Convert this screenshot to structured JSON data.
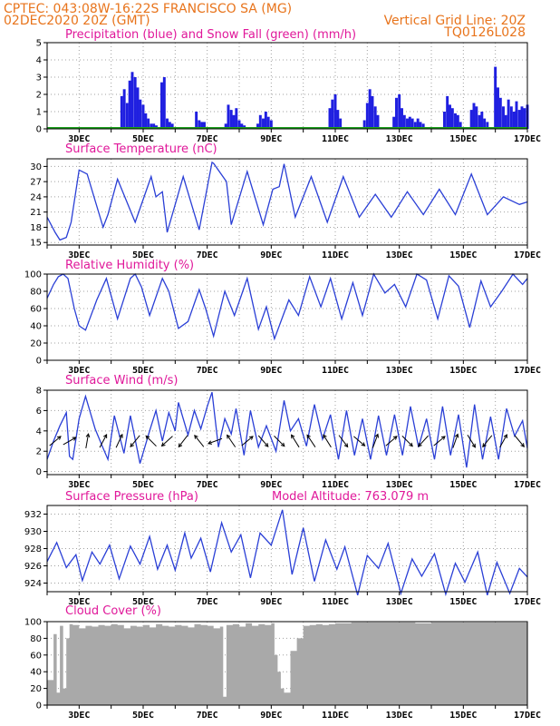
{
  "header": {
    "line1": "CPTEC:  043:08W-16:22S  FRANCISCO SA (MG)",
    "line2": "02DEC2020 20Z (GMT)",
    "grid_note": "Vertical Grid Line: 20Z",
    "model_id": "TQ0126L028"
  },
  "colors": {
    "precip": "#1f1fe0",
    "snow": "#1aa01a",
    "line": "#2a3fd6",
    "cloud": "#a9a9a9",
    "title": "#e0189a",
    "header": "#e8741c",
    "grid": "#a0a0a0"
  },
  "x_axis": {
    "start_day": 2,
    "end_day": 17,
    "tick_labels": [
      "3DEC",
      "5DEC",
      "7DEC",
      "9DEC",
      "11DEC",
      "13DEC",
      "15DEC",
      "17DEC"
    ]
  },
  "chart_data": [
    {
      "type": "bar",
      "title": "Precipitation (blue) and Snow Fall (green) (mm/h)",
      "ylim": [
        0,
        5
      ],
      "yticks": [
        0,
        1,
        2,
        3,
        4,
        5
      ],
      "x_unit": "day of December 2020 (fractional)",
      "series": [
        {
          "name": "Precipitation",
          "x": [
            4.33,
            4.41,
            4.5,
            4.58,
            4.66,
            4.75,
            4.83,
            4.91,
            5.0,
            5.08,
            5.16,
            5.25,
            5.33,
            5.41,
            5.58,
            5.66,
            5.75,
            5.83,
            5.91,
            6.66,
            6.75,
            6.83,
            6.91,
            7.58,
            7.66,
            7.75,
            7.83,
            7.91,
            8.0,
            8.08,
            8.16,
            8.58,
            8.66,
            8.75,
            8.83,
            8.91,
            9.0,
            10.83,
            10.91,
            11.0,
            11.08,
            11.16,
            11.91,
            12.0,
            12.08,
            12.16,
            12.25,
            12.33,
            12.83,
            12.91,
            13.0,
            13.08,
            13.16,
            13.25,
            13.33,
            13.41,
            13.5,
            13.58,
            13.66,
            13.75,
            14.41,
            14.5,
            14.58,
            14.66,
            14.75,
            14.83,
            14.91,
            15.25,
            15.33,
            15.41,
            15.5,
            15.58,
            15.66,
            15.75,
            16.0,
            16.08,
            16.16,
            16.25,
            16.33,
            16.41,
            16.5,
            16.58,
            16.66,
            16.75,
            16.83,
            16.91,
            17.0
          ],
          "values": [
            1.9,
            2.3,
            1.5,
            2.8,
            3.3,
            3.0,
            2.4,
            1.7,
            1.4,
            0.9,
            0.6,
            0.3,
            0.3,
            0.2,
            2.7,
            3.0,
            0.6,
            0.4,
            0.3,
            1.0,
            0.5,
            0.4,
            0.4,
            0.3,
            1.4,
            1.1,
            0.8,
            1.2,
            0.5,
            0.3,
            0.2,
            0.3,
            0.8,
            0.6,
            1.0,
            0.7,
            0.5,
            1.2,
            1.7,
            2.0,
            1.1,
            0.6,
            0.5,
            1.5,
            2.3,
            1.9,
            1.3,
            0.8,
            0.7,
            1.8,
            2.0,
            1.2,
            0.8,
            0.6,
            0.7,
            0.6,
            0.4,
            0.6,
            0.4,
            0.3,
            1.0,
            1.9,
            1.4,
            1.2,
            0.9,
            0.8,
            0.4,
            1.1,
            1.5,
            1.3,
            0.8,
            1.0,
            0.6,
            0.4,
            3.6,
            2.4,
            1.8,
            1.3,
            0.8,
            1.7,
            1.3,
            1.0,
            1.6,
            1.1,
            1.3,
            1.2,
            1.4
          ]
        },
        {
          "name": "Snow Fall",
          "x": [],
          "values": []
        }
      ]
    },
    {
      "type": "line",
      "title": "Surface Temperature (nC)",
      "ylim": [
        14.5,
        31.5
      ],
      "yticks": [
        15,
        18,
        21,
        24,
        27,
        30
      ],
      "x": [
        2.0,
        2.25,
        2.4,
        2.6,
        2.75,
        3.0,
        3.25,
        3.75,
        3.9,
        4.2,
        4.75,
        5.25,
        5.4,
        5.6,
        5.75,
        6.25,
        6.75,
        7.15,
        7.2,
        7.6,
        7.75,
        8.25,
        8.75,
        9.05,
        9.25,
        9.4,
        9.75,
        10.25,
        10.75,
        11.25,
        11.75,
        12.25,
        12.75,
        13.25,
        13.75,
        14.25,
        14.75,
        15.25,
        15.75,
        16.25,
        16.75,
        17.0
      ],
      "values": [
        20,
        17,
        15.5,
        16,
        19,
        29.3,
        28.5,
        18,
        20.5,
        27.5,
        19,
        28,
        24,
        25,
        17,
        28,
        17.5,
        30.8,
        30.6,
        27,
        18.5,
        29,
        18.5,
        25.5,
        26,
        30.5,
        20,
        28,
        19,
        28,
        20,
        24.5,
        20,
        25,
        20.5,
        25.5,
        20.5,
        28.5,
        20.5,
        24,
        22.5,
        23
      ]
    },
    {
      "type": "line",
      "title": "Relative Humidity (%)",
      "ylim": [
        0,
        100
      ],
      "yticks": [
        0,
        20,
        40,
        60,
        80,
        100
      ],
      "x": [
        2.0,
        2.2,
        2.35,
        2.5,
        2.65,
        2.85,
        3.0,
        3.2,
        3.55,
        3.85,
        4.2,
        4.6,
        4.75,
        4.95,
        5.2,
        5.6,
        5.8,
        6.1,
        6.4,
        6.75,
        6.95,
        7.2,
        7.55,
        7.85,
        8.25,
        8.6,
        8.85,
        9.1,
        9.55,
        9.85,
        10.2,
        10.55,
        10.85,
        11.2,
        11.55,
        11.85,
        12.2,
        12.55,
        12.85,
        13.2,
        13.55,
        13.85,
        14.2,
        14.55,
        14.85,
        15.2,
        15.55,
        15.85,
        16.2,
        16.55,
        16.85,
        17.0
      ],
      "values": [
        72,
        88,
        97,
        100,
        95,
        60,
        40,
        35,
        70,
        95,
        48,
        95,
        100,
        85,
        52,
        95,
        80,
        37,
        45,
        82,
        60,
        28,
        80,
        52,
        95,
        36,
        62,
        25,
        70,
        52,
        97,
        62,
        95,
        48,
        90,
        52,
        100,
        78,
        88,
        62,
        100,
        93,
        48,
        98,
        86,
        38,
        92,
        62,
        80,
        100,
        88,
        95
      ]
    },
    {
      "type": "line",
      "title": "Surface Wind (m/s)",
      "ylim": [
        -0.3,
        8
      ],
      "yticks": [
        0,
        2,
        4,
        6,
        8
      ],
      "x": [
        2.0,
        2.2,
        2.4,
        2.6,
        2.7,
        2.8,
        3.0,
        3.2,
        3.5,
        3.75,
        3.9,
        4.1,
        4.4,
        4.6,
        4.9,
        5.2,
        5.4,
        5.6,
        5.8,
        6.0,
        6.1,
        6.4,
        6.6,
        6.8,
        7.0,
        7.15,
        7.35,
        7.55,
        7.75,
        7.9,
        8.15,
        8.35,
        8.6,
        8.85,
        9.15,
        9.4,
        9.6,
        9.85,
        10.1,
        10.35,
        10.6,
        10.85,
        11.1,
        11.35,
        11.6,
        11.85,
        12.1,
        12.35,
        12.6,
        12.85,
        13.1,
        13.35,
        13.6,
        13.85,
        14.1,
        14.35,
        14.6,
        14.85,
        15.1,
        15.35,
        15.6,
        15.85,
        16.1,
        16.35,
        16.6,
        16.85,
        17.0
      ],
      "values": [
        1.2,
        3.0,
        4.5,
        5.8,
        1.5,
        1.2,
        5.2,
        7.4,
        4.2,
        2.3,
        1.2,
        5.5,
        1.8,
        5.5,
        0.8,
        4.0,
        6.0,
        3.0,
        5.8,
        4.0,
        6.8,
        3.6,
        6.0,
        4.2,
        6.4,
        7.8,
        2.4,
        5.2,
        3.7,
        6.2,
        1.6,
        6.0,
        2.4,
        4.5,
        2.0,
        7.0,
        4.0,
        5.2,
        2.5,
        6.6,
        3.2,
        5.6,
        1.2,
        6.0,
        1.6,
        5.2,
        1.2,
        5.5,
        1.6,
        5.6,
        1.6,
        6.4,
        2.4,
        5.2,
        1.2,
        6.4,
        1.6,
        5.6,
        0.4,
        6.6,
        1.2,
        5.4,
        1.2,
        6.2,
        3.5,
        5.0,
        2.3
      ],
      "arrows": {
        "x": [
          2.25,
          2.7,
          3.25,
          3.75,
          4.25,
          4.75,
          5.25,
          5.75,
          6.25,
          6.75,
          7.25,
          7.75,
          8.25,
          8.75,
          9.25,
          9.75,
          10.25,
          10.75,
          11.25,
          11.75,
          12.25,
          12.75,
          13.25,
          13.75,
          14.25,
          14.75,
          15.25,
          15.75,
          16.25,
          16.75
        ],
        "u": [
          0.6,
          0.7,
          0.4,
          0.8,
          0.7,
          -0.9,
          -1.0,
          -1.0,
          -1.0,
          -1.2,
          -1.1,
          -1.1,
          0.6,
          0.7,
          0.6,
          -1.0,
          -1.0,
          -1.0,
          0.6,
          0.7,
          0.6,
          0.7,
          0.6,
          -1.2,
          0.6,
          0.6,
          0.5,
          -1.2,
          0.5,
          0.5
        ],
        "v": [
          0.5,
          0.4,
          2.3,
          1.5,
          1.5,
          -1.1,
          1.0,
          -0.9,
          -1.3,
          1.5,
          -0.4,
          1.6,
          0.5,
          -0.8,
          -0.6,
          1.6,
          1.5,
          1.6,
          -0.8,
          -0.6,
          1.6,
          0.6,
          -0.6,
          -1.3,
          0.5,
          1.7,
          -0.8,
          -1.5,
          0.9,
          -0.6
        ]
      }
    },
    {
      "type": "line",
      "title": "Surface Pressure (hPa)",
      "model_altitude_label": "Model Altitude: 763.079  m",
      "ylim": [
        923,
        933
      ],
      "yticks": [
        924,
        926,
        928,
        930,
        932
      ],
      "x": [
        2.0,
        2.3,
        2.6,
        2.9,
        3.1,
        3.4,
        3.65,
        3.95,
        4.25,
        4.6,
        4.9,
        5.2,
        5.45,
        5.75,
        6.0,
        6.3,
        6.5,
        6.8,
        7.1,
        7.45,
        7.75,
        8.05,
        8.35,
        8.65,
        9.0,
        9.35,
        9.65,
        10.0,
        10.35,
        10.7,
        11.05,
        11.3,
        11.7,
        12.0,
        12.35,
        12.65,
        13.05,
        13.4,
        13.7,
        14.1,
        14.45,
        14.75,
        15.05,
        15.45,
        15.75,
        16.05,
        16.45,
        16.75,
        17.0
      ],
      "values": [
        926.5,
        928.7,
        925.8,
        927.3,
        924.3,
        927.6,
        926.2,
        928.4,
        924.5,
        928.3,
        926.2,
        929.4,
        925.6,
        928.4,
        925.5,
        929.8,
        926.9,
        929.2,
        925.3,
        931.0,
        927.6,
        929.6,
        924.6,
        929.8,
        928.4,
        932.5,
        925.0,
        930.4,
        924.2,
        929.0,
        925.6,
        928.2,
        922.6,
        927.2,
        925.7,
        928.6,
        922.8,
        926.8,
        924.8,
        927.4,
        922.7,
        926.3,
        924.1,
        927.6,
        922.6,
        926.4,
        922.8,
        925.7,
        924.7
      ]
    },
    {
      "type": "bar",
      "title": "Cloud Cover (%)",
      "ylim": [
        0,
        100
      ],
      "yticks": [
        0,
        20,
        40,
        60,
        80,
        100
      ],
      "x": [
        2.0,
        2.2,
        2.3,
        2.4,
        2.5,
        2.6,
        2.7,
        2.8,
        3.0,
        3.2,
        3.4,
        3.6,
        3.8,
        4.0,
        4.2,
        4.4,
        4.6,
        4.8,
        5.0,
        5.2,
        5.4,
        5.6,
        5.8,
        6.0,
        6.2,
        6.4,
        6.6,
        6.8,
        7.0,
        7.2,
        7.4,
        7.5,
        7.6,
        7.8,
        8.0,
        8.2,
        8.4,
        8.6,
        8.8,
        9.0,
        9.1,
        9.2,
        9.3,
        9.4,
        9.6,
        9.8,
        10.0,
        10.2,
        10.4,
        10.6,
        10.8,
        11.0,
        11.5,
        12.0,
        12.5,
        13.0,
        13.5,
        14.0,
        14.5,
        15.0,
        15.5,
        16.0,
        16.5,
        17.0
      ],
      "values": [
        30,
        85,
        15,
        95,
        20,
        80,
        97,
        96,
        92,
        95,
        94,
        96,
        95,
        97,
        96,
        92,
        95,
        94,
        96,
        93,
        97,
        95,
        94,
        96,
        95,
        93,
        97,
        96,
        95,
        92,
        94,
        10,
        96,
        97,
        94,
        98,
        95,
        97,
        96,
        98,
        60,
        40,
        20,
        15,
        65,
        80,
        95,
        96,
        97,
        96,
        97,
        98,
        99,
        99,
        99,
        99,
        98,
        99,
        99,
        99,
        99,
        99,
        99,
        99
      ]
    }
  ]
}
